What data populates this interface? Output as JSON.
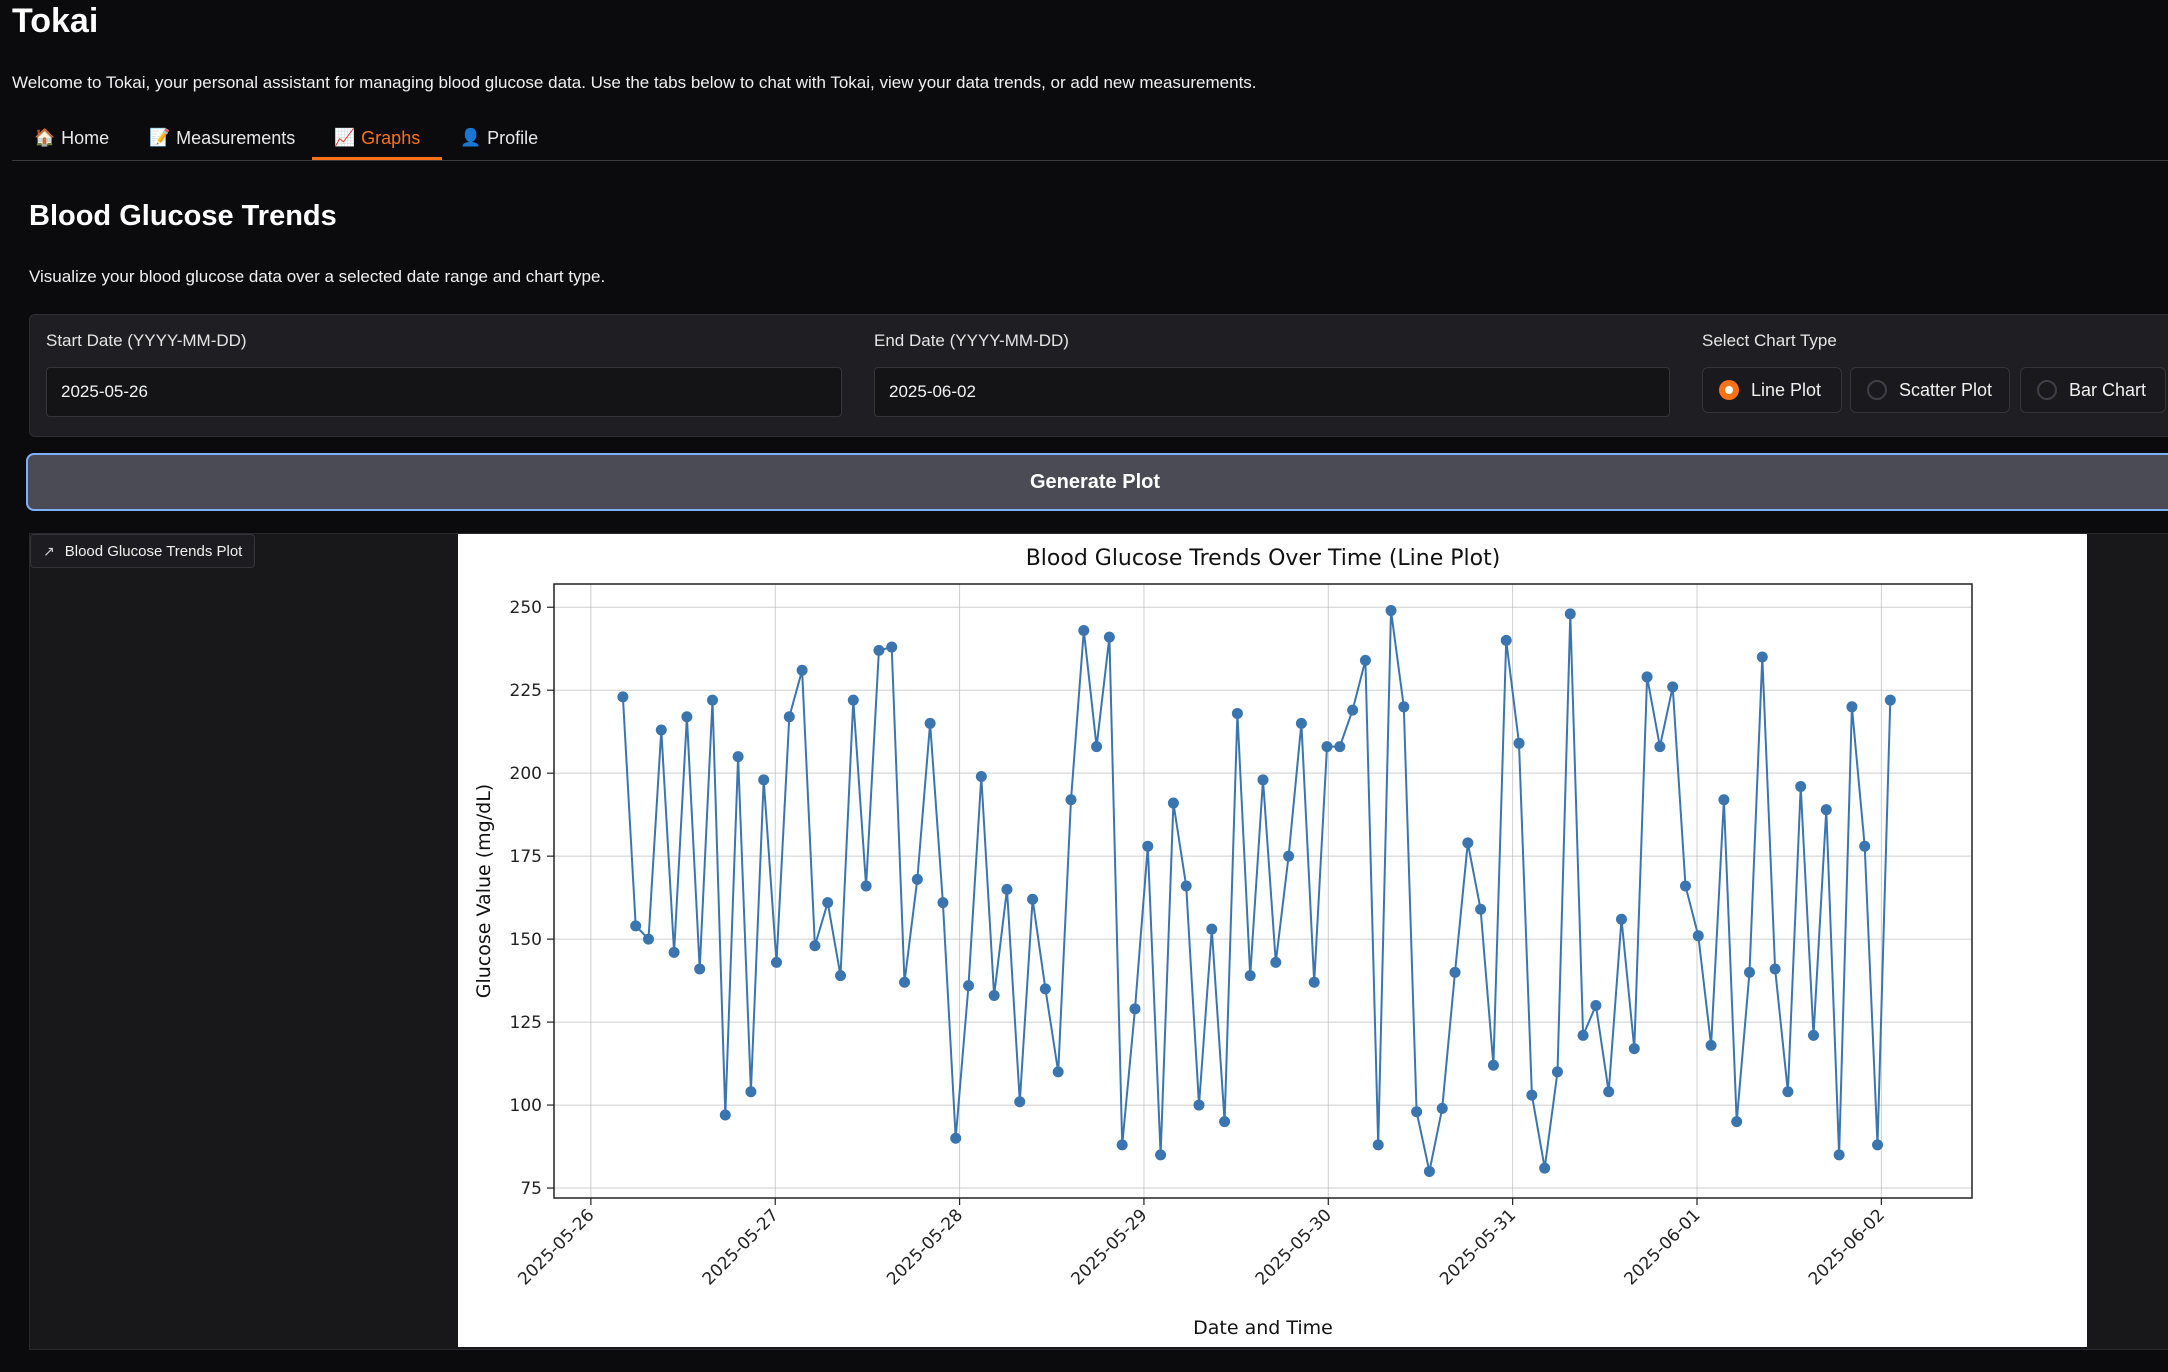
{
  "app": {
    "title": "Tokai",
    "welcome": "Welcome to Tokai, your personal assistant for managing blood glucose data. Use the tabs below to chat with Tokai, view your data trends, or add new measurements."
  },
  "tabs": [
    {
      "icon": "🏠",
      "label": "Home"
    },
    {
      "icon": "📝",
      "label": "Measurements"
    },
    {
      "icon": "📈",
      "label": "Graphs"
    },
    {
      "icon": "👤",
      "label": "Profile"
    }
  ],
  "active_tab": "Graphs",
  "section": {
    "title": "Blood Glucose Trends",
    "description": "Visualize your blood glucose data over a selected date range and chart type."
  },
  "form": {
    "start_label": "Start Date (YYYY-MM-DD)",
    "start_value": "2025-05-26",
    "end_label": "End Date (YYYY-MM-DD)",
    "end_value": "2025-06-02",
    "chart_type_label": "Select Chart Type",
    "chart_types": [
      "Line Plot",
      "Scatter Plot",
      "Bar Chart"
    ],
    "selected_chart_type": "Line Plot"
  },
  "generate_button": "Generate Plot",
  "plot_label": "Blood Glucose Trends Plot",
  "colors": {
    "accent": "#f97316",
    "series": "#3b75af"
  },
  "chart_data": {
    "type": "line",
    "title": "Blood Glucose Trends Over Time (Line Plot)",
    "xlabel": "Date and Time",
    "ylabel": "Glucose Value (mg/dL)",
    "xlim": [
      "2025-05-25T19:12",
      "2025-06-02T11:48"
    ],
    "ylim": [
      72,
      257
    ],
    "yticks": [
      75,
      100,
      125,
      150,
      175,
      200,
      225,
      250
    ],
    "xticks": [
      "2025-05-26",
      "2025-05-27",
      "2025-05-28",
      "2025-05-29",
      "2025-05-30",
      "2025-05-31",
      "2025-06-01",
      "2025-06-02"
    ],
    "grid": true,
    "marker": "circle",
    "series": [
      {
        "x": [
          "2025-05-26T04:10",
          "2025-05-26T05:50",
          "2025-05-26T07:30",
          "2025-05-26T09:10",
          "2025-05-26T10:50",
          "2025-05-26T12:30",
          "2025-05-26T14:10",
          "2025-05-26T15:50",
          "2025-05-26T17:30",
          "2025-05-26T19:10",
          "2025-05-26T20:50",
          "2025-05-26T22:30",
          "2025-05-27T00:10",
          "2025-05-27T01:50",
          "2025-05-27T03:30",
          "2025-05-27T05:10",
          "2025-05-27T06:50",
          "2025-05-27T08:30",
          "2025-05-27T10:10",
          "2025-05-27T11:50",
          "2025-05-27T13:30",
          "2025-05-27T15:10",
          "2025-05-27T16:50",
          "2025-05-27T18:30",
          "2025-05-27T20:10",
          "2025-05-27T21:50",
          "2025-05-27T23:30",
          "2025-05-28T01:10",
          "2025-05-28T02:50",
          "2025-05-28T04:30",
          "2025-05-28T06:10",
          "2025-05-28T07:50",
          "2025-05-28T09:30",
          "2025-05-28T11:10",
          "2025-05-28T12:50",
          "2025-05-28T14:30",
          "2025-05-28T16:10",
          "2025-05-28T17:50",
          "2025-05-28T19:30",
          "2025-05-28T21:10",
          "2025-05-28T22:50",
          "2025-05-29T00:30",
          "2025-05-29T02:10",
          "2025-05-29T03:50",
          "2025-05-29T05:30",
          "2025-05-29T07:10",
          "2025-05-29T08:50",
          "2025-05-29T10:30",
          "2025-05-29T12:10",
          "2025-05-29T13:50",
          "2025-05-29T15:30",
          "2025-05-29T17:10",
          "2025-05-29T18:50",
          "2025-05-29T20:30",
          "2025-05-29T22:10",
          "2025-05-29T23:50",
          "2025-05-30T01:30",
          "2025-05-30T03:10",
          "2025-05-30T04:50",
          "2025-05-30T06:30",
          "2025-05-30T08:10",
          "2025-05-30T09:50",
          "2025-05-30T11:30",
          "2025-05-30T13:10",
          "2025-05-30T14:50",
          "2025-05-30T16:30",
          "2025-05-30T18:10",
          "2025-05-30T19:50",
          "2025-05-30T21:30",
          "2025-05-30T23:10",
          "2025-05-31T00:50",
          "2025-05-31T02:30",
          "2025-05-31T04:10",
          "2025-05-31T05:50",
          "2025-05-31T07:30",
          "2025-05-31T09:10",
          "2025-05-31T10:50",
          "2025-05-31T12:30",
          "2025-05-31T14:10",
          "2025-05-31T15:50",
          "2025-05-31T17:30",
          "2025-05-31T19:10",
          "2025-05-31T20:50",
          "2025-05-31T22:30",
          "2025-06-01T00:10",
          "2025-06-01T01:50",
          "2025-06-01T03:30",
          "2025-06-01T05:10",
          "2025-06-01T06:50",
          "2025-06-01T08:30",
          "2025-06-01T10:10",
          "2025-06-01T11:50",
          "2025-06-01T13:30",
          "2025-06-01T15:10",
          "2025-06-01T16:50",
          "2025-06-01T18:30",
          "2025-06-01T20:10",
          "2025-06-01T21:50",
          "2025-06-01T23:30",
          "2025-06-02T01:10"
        ],
        "y": [
          223,
          154,
          150,
          213,
          146,
          217,
          141,
          222,
          97,
          205,
          104,
          198,
          143,
          217,
          231,
          148,
          161,
          139,
          222,
          166,
          237,
          238,
          137,
          168,
          215,
          161,
          90,
          136,
          199,
          133,
          165,
          101,
          162,
          135,
          110,
          192,
          243,
          208,
          241,
          88,
          129,
          178,
          85,
          191,
          166,
          100,
          153,
          95,
          218,
          139,
          198,
          143,
          175,
          215,
          137,
          208,
          208,
          219,
          234,
          88,
          249,
          220,
          98,
          80,
          99,
          140,
          179,
          159,
          112,
          240,
          209,
          103,
          81,
          110,
          248,
          121,
          130,
          104,
          156,
          117,
          229,
          208,
          226,
          166,
          151,
          118,
          192,
          95,
          140,
          235,
          141,
          104,
          196,
          121,
          189,
          85,
          220,
          178,
          88,
          222
        ]
      }
    ]
  }
}
